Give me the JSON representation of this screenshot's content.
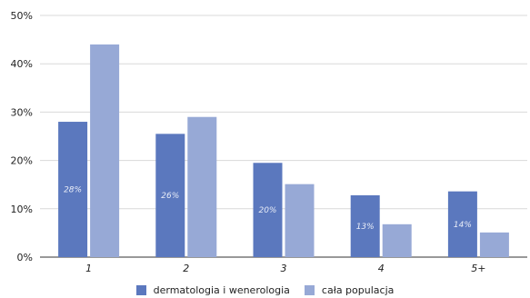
{
  "chart_data": {
    "type": "bar",
    "categories": [
      "1",
      "2",
      "3",
      "4",
      "5+"
    ],
    "y_ticks": [
      "0%",
      "10%",
      "20%",
      "30%",
      "40%",
      "50%"
    ],
    "ylim": [
      0,
      50
    ],
    "grid": true,
    "legend_position": "bottom",
    "series": [
      {
        "name": "dermatologia i wenerologia",
        "color": "#5b78be",
        "values": [
          28,
          25.5,
          19.5,
          12.8,
          13.6
        ],
        "data_labels": [
          "28%",
          "26%",
          "20%",
          "13%",
          "14%"
        ]
      },
      {
        "name": "cała populacja",
        "color": "#97a9d6",
        "values": [
          44,
          29,
          15.1,
          6.8,
          5.1
        ]
      }
    ]
  }
}
